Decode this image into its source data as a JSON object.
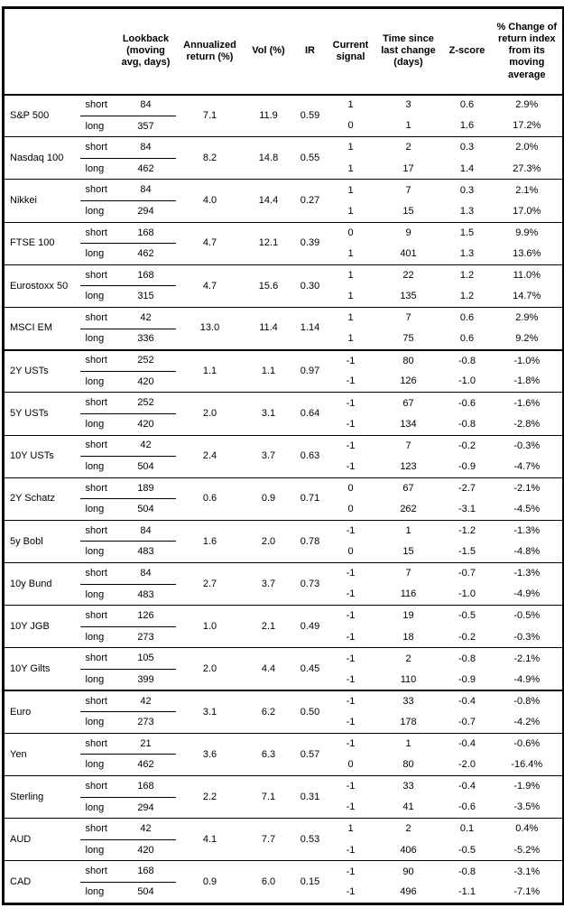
{
  "headers": {
    "asset": "",
    "period": "",
    "lookback": "Lookback\n(moving\navg, days)",
    "ann_return": "Annualized\nreturn (%)",
    "vol": "Vol (%)",
    "ir": "IR",
    "signal": "Current\nsignal",
    "time_since": "Time since\nlast change\n(days)",
    "zscore": "Z-score",
    "pct_change": "% Change of\nreturn index\nfrom its\nmoving\naverage"
  },
  "assets": [
    {
      "name": "S&P 500",
      "section_start": false,
      "ann_return": "7.1",
      "vol": "11.9",
      "ir": "0.59",
      "rows": [
        {
          "period": "short",
          "lookback": "84",
          "signal": "1",
          "time": "3",
          "zscore": "0.6",
          "pct": "2.9%"
        },
        {
          "period": "long",
          "lookback": "357",
          "signal": "0",
          "time": "1",
          "zscore": "1.6",
          "pct": "17.2%"
        }
      ]
    },
    {
      "name": "Nasdaq 100",
      "section_start": false,
      "ann_return": "8.2",
      "vol": "14.8",
      "ir": "0.55",
      "rows": [
        {
          "period": "short",
          "lookback": "84",
          "signal": "1",
          "time": "2",
          "zscore": "0.3",
          "pct": "2.0%"
        },
        {
          "period": "long",
          "lookback": "462",
          "signal": "1",
          "time": "17",
          "zscore": "1.4",
          "pct": "27.3%"
        }
      ]
    },
    {
      "name": "Nikkei",
      "section_start": false,
      "ann_return": "4.0",
      "vol": "14.4",
      "ir": "0.27",
      "rows": [
        {
          "period": "short",
          "lookback": "84",
          "signal": "1",
          "time": "7",
          "zscore": "0.3",
          "pct": "2.1%"
        },
        {
          "period": "long",
          "lookback": "294",
          "signal": "1",
          "time": "15",
          "zscore": "1.3",
          "pct": "17.0%"
        }
      ]
    },
    {
      "name": "FTSE 100",
      "section_start": false,
      "ann_return": "4.7",
      "vol": "12.1",
      "ir": "0.39",
      "rows": [
        {
          "period": "short",
          "lookback": "168",
          "signal": "0",
          "time": "9",
          "zscore": "1.5",
          "pct": "9.9%"
        },
        {
          "period": "long",
          "lookback": "462",
          "signal": "1",
          "time": "401",
          "zscore": "1.3",
          "pct": "13.6%"
        }
      ]
    },
    {
      "name": "Eurostoxx 50",
      "section_start": false,
      "ann_return": "4.7",
      "vol": "15.6",
      "ir": "0.30",
      "rows": [
        {
          "period": "short",
          "lookback": "168",
          "signal": "1",
          "time": "22",
          "zscore": "1.2",
          "pct": "11.0%"
        },
        {
          "period": "long",
          "lookback": "315",
          "signal": "1",
          "time": "135",
          "zscore": "1.2",
          "pct": "14.7%"
        }
      ]
    },
    {
      "name": "MSCI EM",
      "section_start": false,
      "ann_return": "13.0",
      "vol": "11.4",
      "ir": "1.14",
      "rows": [
        {
          "period": "short",
          "lookback": "42",
          "signal": "1",
          "time": "7",
          "zscore": "0.6",
          "pct": "2.9%"
        },
        {
          "period": "long",
          "lookback": "336",
          "signal": "1",
          "time": "75",
          "zscore": "0.6",
          "pct": "9.2%"
        }
      ]
    },
    {
      "name": "2Y USTs",
      "section_start": true,
      "ann_return": "1.1",
      "vol": "1.1",
      "ir": "0.97",
      "rows": [
        {
          "period": "short",
          "lookback": "252",
          "signal": "-1",
          "time": "80",
          "zscore": "-0.8",
          "pct": "-1.0%"
        },
        {
          "period": "long",
          "lookback": "420",
          "signal": "-1",
          "time": "126",
          "zscore": "-1.0",
          "pct": "-1.8%"
        }
      ]
    },
    {
      "name": "5Y USTs",
      "section_start": false,
      "ann_return": "2.0",
      "vol": "3.1",
      "ir": "0.64",
      "rows": [
        {
          "period": "short",
          "lookback": "252",
          "signal": "-1",
          "time": "67",
          "zscore": "-0.6",
          "pct": "-1.6%"
        },
        {
          "period": "long",
          "lookback": "420",
          "signal": "-1",
          "time": "134",
          "zscore": "-0.8",
          "pct": "-2.8%"
        }
      ]
    },
    {
      "name": "10Y USTs",
      "section_start": false,
      "ann_return": "2.4",
      "vol": "3.7",
      "ir": "0.63",
      "rows": [
        {
          "period": "short",
          "lookback": "42",
          "signal": "-1",
          "time": "7",
          "zscore": "-0.2",
          "pct": "-0.3%"
        },
        {
          "period": "long",
          "lookback": "504",
          "signal": "-1",
          "time": "123",
          "zscore": "-0.9",
          "pct": "-4.7%"
        }
      ]
    },
    {
      "name": "2Y Schatz",
      "section_start": false,
      "ann_return": "0.6",
      "vol": "0.9",
      "ir": "0.71",
      "rows": [
        {
          "period": "short",
          "lookback": "189",
          "signal": "0",
          "time": "67",
          "zscore": "-2.7",
          "pct": "-2.1%"
        },
        {
          "period": "long",
          "lookback": "504",
          "signal": "0",
          "time": "262",
          "zscore": "-3.1",
          "pct": "-4.5%"
        }
      ]
    },
    {
      "name": "5y Bobl",
      "section_start": false,
      "ann_return": "1.6",
      "vol": "2.0",
      "ir": "0.78",
      "rows": [
        {
          "period": "short",
          "lookback": "84",
          "signal": "-1",
          "time": "1",
          "zscore": "-1.2",
          "pct": "-1.3%"
        },
        {
          "period": "long",
          "lookback": "483",
          "signal": "0",
          "time": "15",
          "zscore": "-1.5",
          "pct": "-4.8%"
        }
      ]
    },
    {
      "name": "10y Bund",
      "section_start": false,
      "ann_return": "2.7",
      "vol": "3.7",
      "ir": "0.73",
      "rows": [
        {
          "period": "short",
          "lookback": "84",
          "signal": "-1",
          "time": "7",
          "zscore": "-0.7",
          "pct": "-1.3%"
        },
        {
          "period": "long",
          "lookback": "483",
          "signal": "-1",
          "time": "116",
          "zscore": "-1.0",
          "pct": "-4.9%"
        }
      ]
    },
    {
      "name": "10Y JGB",
      "section_start": false,
      "ann_return": "1.0",
      "vol": "2.1",
      "ir": "0.49",
      "rows": [
        {
          "period": "short",
          "lookback": "126",
          "signal": "-1",
          "time": "19",
          "zscore": "-0.5",
          "pct": "-0.5%"
        },
        {
          "period": "long",
          "lookback": "273",
          "signal": "-1",
          "time": "18",
          "zscore": "-0.2",
          "pct": "-0.3%"
        }
      ]
    },
    {
      "name": "10Y Gilts",
      "section_start": false,
      "ann_return": "2.0",
      "vol": "4.4",
      "ir": "0.45",
      "rows": [
        {
          "period": "short",
          "lookback": "105",
          "signal": "-1",
          "time": "2",
          "zscore": "-0.8",
          "pct": "-2.1%"
        },
        {
          "period": "long",
          "lookback": "399",
          "signal": "-1",
          "time": "110",
          "zscore": "-0.9",
          "pct": "-4.9%"
        }
      ]
    },
    {
      "name": "Euro",
      "section_start": true,
      "ann_return": "3.1",
      "vol": "6.2",
      "ir": "0.50",
      "rows": [
        {
          "period": "short",
          "lookback": "42",
          "signal": "-1",
          "time": "33",
          "zscore": "-0.4",
          "pct": "-0.8%"
        },
        {
          "period": "long",
          "lookback": "273",
          "signal": "-1",
          "time": "178",
          "zscore": "-0.7",
          "pct": "-4.2%"
        }
      ]
    },
    {
      "name": "Yen",
      "section_start": false,
      "ann_return": "3.6",
      "vol": "6.3",
      "ir": "0.57",
      "rows": [
        {
          "period": "short",
          "lookback": "21",
          "signal": "-1",
          "time": "1",
          "zscore": "-0.4",
          "pct": "-0.6%"
        },
        {
          "period": "long",
          "lookback": "462",
          "signal": "0",
          "time": "80",
          "zscore": "-2.0",
          "pct": "-16.4%"
        }
      ]
    },
    {
      "name": "Sterling",
      "section_start": false,
      "ann_return": "2.2",
      "vol": "7.1",
      "ir": "0.31",
      "rows": [
        {
          "period": "short",
          "lookback": "168",
          "signal": "-1",
          "time": "33",
          "zscore": "-0.4",
          "pct": "-1.9%"
        },
        {
          "period": "long",
          "lookback": "294",
          "signal": "-1",
          "time": "41",
          "zscore": "-0.6",
          "pct": "-3.5%"
        }
      ]
    },
    {
      "name": "AUD",
      "section_start": false,
      "ann_return": "4.1",
      "vol": "7.7",
      "ir": "0.53",
      "rows": [
        {
          "period": "short",
          "lookback": "42",
          "signal": "1",
          "time": "2",
          "zscore": "0.1",
          "pct": "0.4%"
        },
        {
          "period": "long",
          "lookback": "420",
          "signal": "-1",
          "time": "406",
          "zscore": "-0.5",
          "pct": "-5.2%"
        }
      ]
    },
    {
      "name": "CAD",
      "section_start": false,
      "ann_return": "0.9",
      "vol": "6.0",
      "ir": "0.15",
      "rows": [
        {
          "period": "short",
          "lookback": "168",
          "signal": "-1",
          "time": "90",
          "zscore": "-0.8",
          "pct": "-3.1%"
        },
        {
          "period": "long",
          "lookback": "504",
          "signal": "-1",
          "time": "496",
          "zscore": "-1.1",
          "pct": "-7.1%"
        }
      ]
    }
  ]
}
